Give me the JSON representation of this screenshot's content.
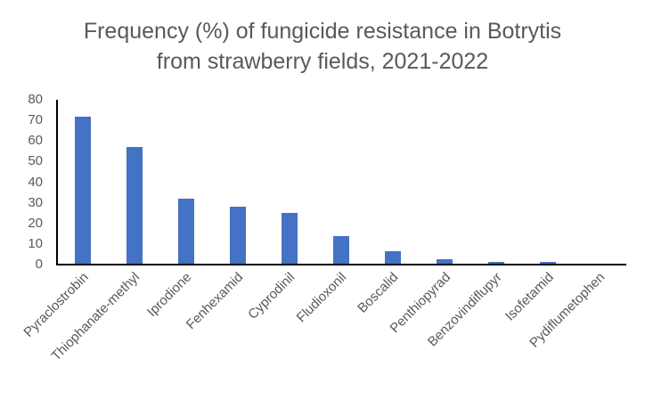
{
  "chart_data": {
    "type": "bar",
    "title": "Frequency (%) of fungicide resistance in Botrytis from strawberry fields, 2021-2022",
    "title_lines": [
      "Frequency (%) of fungicide resistance in Botrytis",
      "from strawberry fields, 2021-2022"
    ],
    "xlabel": "",
    "ylabel": "",
    "ylim": [
      0,
      80
    ],
    "y_ticks": [
      0,
      10,
      20,
      30,
      40,
      50,
      60,
      70,
      80
    ],
    "grid": false,
    "legend": null,
    "bar_color": "#4472C4",
    "categories": [
      "Pyraclostrobin",
      "Thiophanate-methyl",
      "Iprodione",
      "Fenhexamid",
      "Cyprodinil",
      "Fludioxonil",
      "Boscalid",
      "Penthiopyrad",
      "Benzovindiflupyr",
      "Isofetamid",
      "Pydiflumetophen"
    ],
    "values": [
      72,
      57,
      32,
      28,
      25,
      14,
      6.5,
      2.5,
      1.3,
      1.3,
      0
    ]
  },
  "colors": {
    "bar": "#4472C4",
    "text": "#595959",
    "axis": "#000000",
    "background": "#FFFFFF"
  }
}
